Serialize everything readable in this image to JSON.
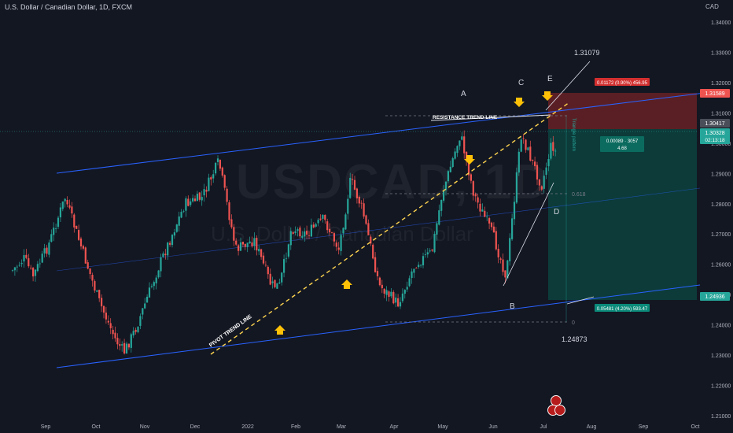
{
  "header": {
    "title": "U.S. Dollar / Canadian Dollar, 1D, FXCM",
    "currency": "CAD"
  },
  "watermark": {
    "symbol": "USDCAD, 1D",
    "name": "U.S. Dollar / Canadian Dollar"
  },
  "colors": {
    "background": "#131722",
    "up": "#26a69a",
    "down": "#ef5350",
    "channel": "#2962ff",
    "pivot_line": "#ffd54f",
    "arrow": "#ffc107",
    "target_zone": "#0c3b3a",
    "stop_zone": "#5a1f24"
  },
  "chart_data": {
    "type": "candlestick",
    "symbol": "USDCAD",
    "timeframe": "1D",
    "x_tick_labels": [
      "Sep",
      "Oct",
      "Nov",
      "Dec",
      "2022",
      "Feb",
      "Mar",
      "Apr",
      "May",
      "Jun",
      "Jul",
      "Aug",
      "Sep",
      "Oct"
    ],
    "y_tick_labels": [
      "1.34000",
      "1.33000",
      "1.32000",
      "1.31000",
      "1.30000",
      "1.29000",
      "1.28000",
      "1.27000",
      "1.26000",
      "1.25000",
      "1.24000",
      "1.23000",
      "1.22000",
      "1.21000"
    ],
    "ylim": [
      1.205,
      1.345
    ],
    "series_trend": [
      [
        "2021-08-20",
        1.258
      ],
      [
        "2021-08-27",
        1.262
      ],
      [
        "2021-09-01",
        1.256
      ],
      [
        "2021-09-10",
        1.266
      ],
      [
        "2021-09-20",
        1.282
      ],
      [
        "2021-09-30",
        1.265
      ],
      [
        "2021-10-10",
        1.248
      ],
      [
        "2021-10-20",
        1.235
      ],
      [
        "2021-10-25",
        1.231
      ],
      [
        "2021-11-01",
        1.239
      ],
      [
        "2021-11-15",
        1.26
      ],
      [
        "2021-11-30",
        1.28
      ],
      [
        "2021-12-10",
        1.282
      ],
      [
        "2021-12-20",
        1.294
      ],
      [
        "2021-12-30",
        1.265
      ],
      [
        "2022-01-10",
        1.268
      ],
      [
        "2022-01-20",
        1.253
      ],
      [
        "2022-01-25",
        1.253
      ],
      [
        "2022-02-01",
        1.272
      ],
      [
        "2022-02-10",
        1.27
      ],
      [
        "2022-02-20",
        1.275
      ],
      [
        "2022-03-01",
        1.265
      ],
      [
        "2022-03-08",
        1.288
      ],
      [
        "2022-03-15",
        1.278
      ],
      [
        "2022-03-25",
        1.253
      ],
      [
        "2022-04-05",
        1.247
      ],
      [
        "2022-04-15",
        1.26
      ],
      [
        "2022-04-25",
        1.264
      ],
      [
        "2022-05-01",
        1.283
      ],
      [
        "2022-05-12",
        1.303
      ],
      [
        "2022-05-20",
        1.283
      ],
      [
        "2022-05-31",
        1.27
      ],
      [
        "2022-06-08",
        1.256
      ],
      [
        "2022-06-15",
        1.293
      ],
      [
        "2022-06-17",
        1.303
      ],
      [
        "2022-06-24",
        1.293
      ],
      [
        "2022-06-29",
        1.286
      ],
      [
        "2022-07-05",
        1.3
      ],
      [
        "2022-07-08",
        1.296
      ]
    ],
    "price_labels": [
      {
        "text": "1.31589",
        "color": "#ef5350"
      },
      {
        "text": "1.30417",
        "color": "#4a4e59"
      },
      {
        "text": "1.30328",
        "color": "#26a69a"
      },
      {
        "text": "02:13:18",
        "color": "#26a69a"
      },
      {
        "text": "1.24936",
        "color": "#26a69a"
      }
    ],
    "annotations": {
      "wave_labels": [
        "A",
        "B",
        "C",
        "D",
        "E"
      ],
      "resistance_label": "RESISTANCE TREND LINE",
      "pivot_label": "PIVOT TREND LINE",
      "triangle_label": "Triangle pattern",
      "fib_618": "0.618",
      "fib_0": "0",
      "level_high": "1.31079",
      "level_low": "1.24873",
      "stop_box": "0.01172 (0.90%) 456.95",
      "position_box_line1": "0.00089 · 3057",
      "position_box_line2": "4.68",
      "target_box": "0.05481 (4.20%) 593.47"
    }
  }
}
